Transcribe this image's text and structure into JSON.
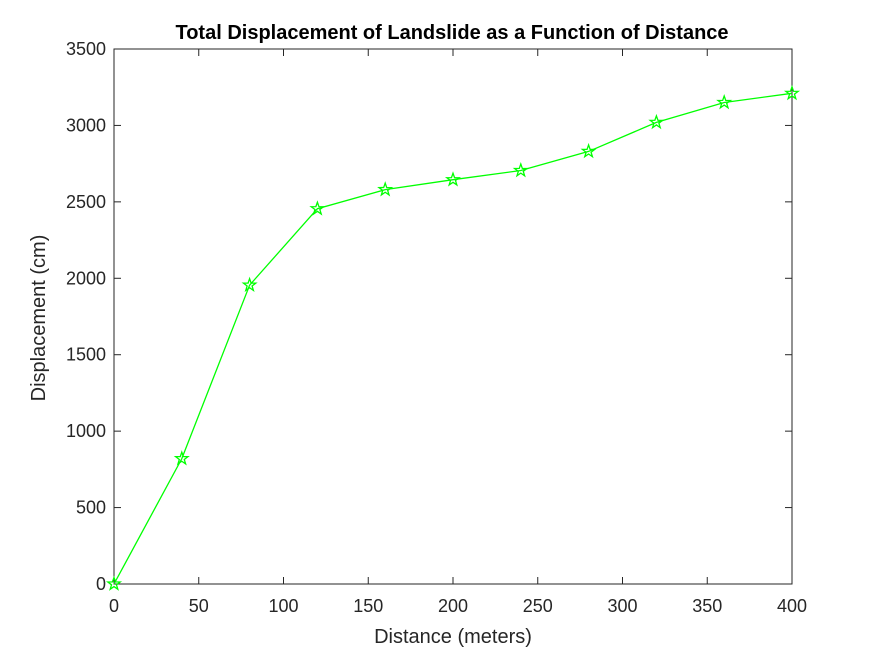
{
  "chart_data": {
    "type": "line",
    "title": "Total Displacement of Landslide as a Function of Distance",
    "xlabel": "Distance (meters)",
    "ylabel": "Displacement (cm)",
    "xlim": [
      0,
      400
    ],
    "ylim": [
      0,
      3500
    ],
    "xticks": [
      0,
      50,
      100,
      150,
      200,
      250,
      300,
      350,
      400
    ],
    "yticks": [
      0,
      500,
      1000,
      1500,
      2000,
      2500,
      3000,
      3500
    ],
    "grid": false,
    "legend": "none",
    "series": [
      {
        "color": "#00ff00",
        "marker": "pentagram",
        "x": [
          0,
          40,
          80,
          120,
          160,
          200,
          240,
          280,
          320,
          360,
          400
        ],
        "y": [
          0,
          820,
          1955,
          2455,
          2580,
          2645,
          2705,
          2830,
          3020,
          3150,
          3210
        ]
      }
    ]
  }
}
